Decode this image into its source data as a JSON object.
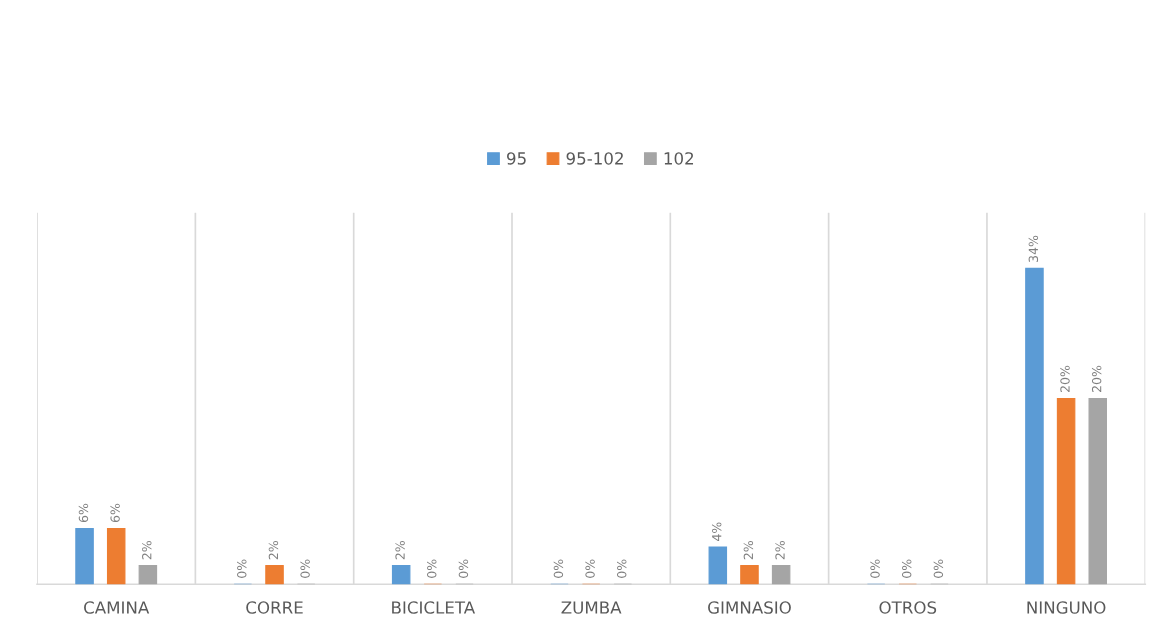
{
  "chart_data": {
    "type": "bar",
    "categories": [
      "CAMINA",
      "CORRE",
      "BICICLETA",
      "ZUMBA",
      "GIMNASIO",
      "OTROS",
      "NINGUNO"
    ],
    "series": [
      {
        "name": "95",
        "color": "#5b9bd5",
        "values": [
          6,
          0,
          2,
          0,
          4,
          0,
          34
        ],
        "value_labels": [
          "6%",
          "0%",
          "2%",
          "0%",
          "4%",
          "0%",
          "34%"
        ]
      },
      {
        "name": "95-102",
        "color": "#ed7d31",
        "values": [
          6,
          2,
          0,
          0,
          2,
          0,
          20
        ],
        "value_labels": [
          "6%",
          "2%",
          "0%",
          "0%",
          "2%",
          "0%",
          "20%"
        ]
      },
      {
        "name": "102",
        "color": "#a5a5a5",
        "values": [
          2,
          0,
          0,
          0,
          2,
          0,
          20
        ],
        "value_labels": [
          "2%",
          "0%",
          "0%",
          "0%",
          "2%",
          "0%",
          "20%"
        ]
      }
    ],
    "ylim": [
      0,
      40
    ],
    "grid": "x",
    "legend": "top",
    "tick_labels": "x"
  }
}
